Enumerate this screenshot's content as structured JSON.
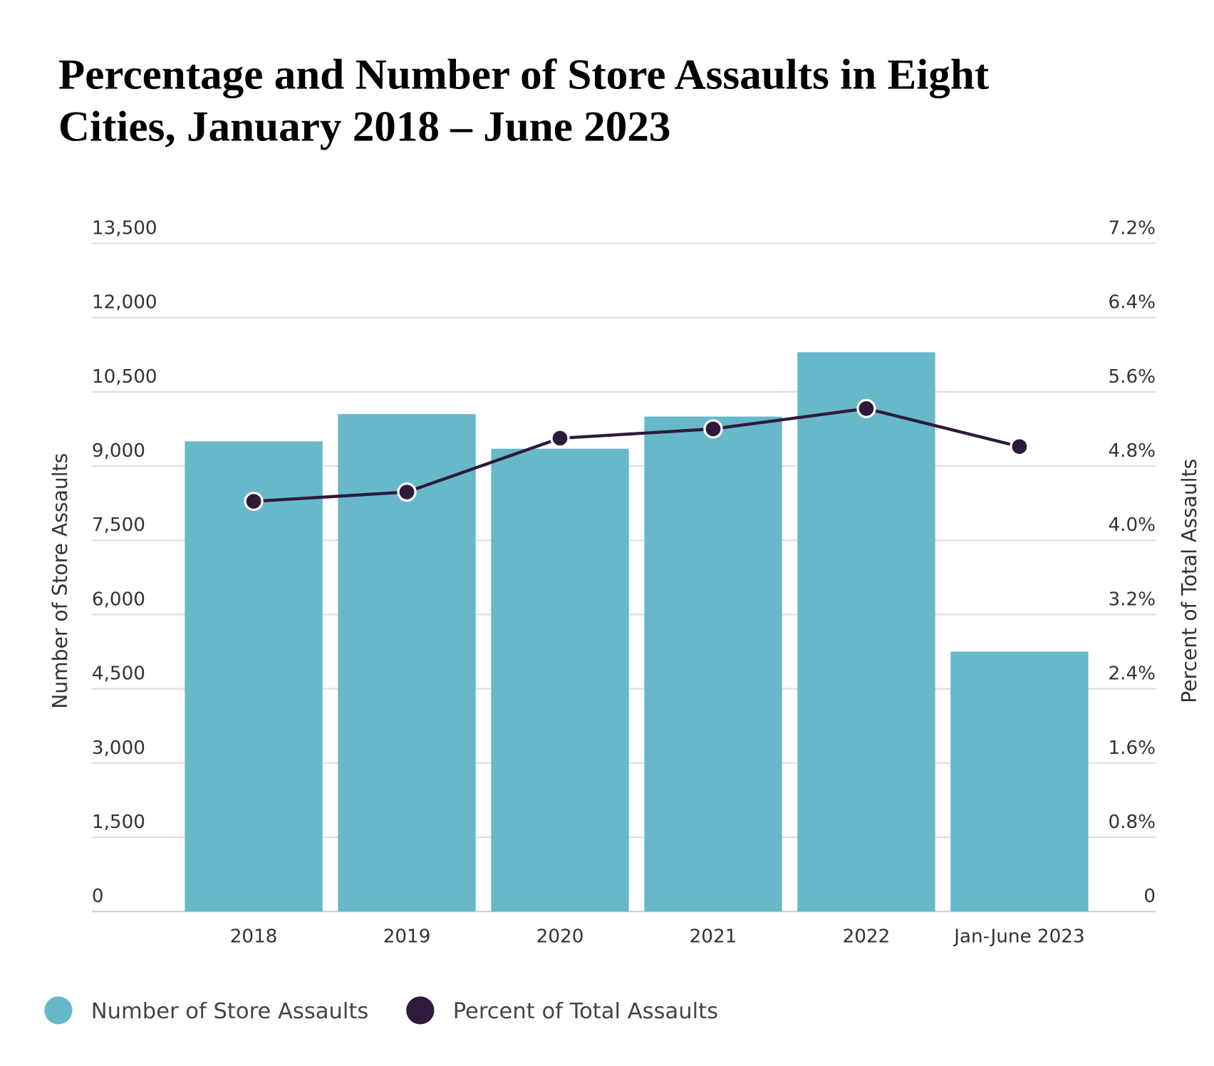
{
  "chart_data": {
    "type": "bar+line",
    "title_lines": [
      "Percentage and Number of Store Assaults in Eight",
      "Cities, January 2018 – June 2023"
    ],
    "categories": [
      "2018",
      "2019",
      "2020",
      "2021",
      "2022",
      "Jan-June 2023"
    ],
    "series": [
      {
        "name": "Number of Store Assaults",
        "type": "bar",
        "axis": "left",
        "color": "#67b9ca",
        "values": [
          9500,
          10050,
          9350,
          10000,
          11300,
          5250
        ]
      },
      {
        "name": "Percent of Total Assaults",
        "type": "line",
        "axis": "right",
        "color": "#2e1a3a",
        "values": [
          4.42,
          4.52,
          5.1,
          5.2,
          5.42,
          5.01
        ]
      }
    ],
    "ylabel": "Number of Store Assaults",
    "y2label": "Percent of Total Assaults",
    "ylim": [
      0,
      13500
    ],
    "y2lim": [
      0,
      7.2
    ],
    "yticks": [
      "0",
      "1,500",
      "3,000",
      "4,500",
      "6,000",
      "7,500",
      "9,000",
      "10,500",
      "12,000",
      "13,500"
    ],
    "y2ticks": [
      "0",
      "0.8%",
      "1.6%",
      "2.4%",
      "3.2%",
      "4.0%",
      "4.8%",
      "5.6%",
      "6.4%",
      "7.2%"
    ],
    "grid": true,
    "legend": "bottom-left"
  }
}
